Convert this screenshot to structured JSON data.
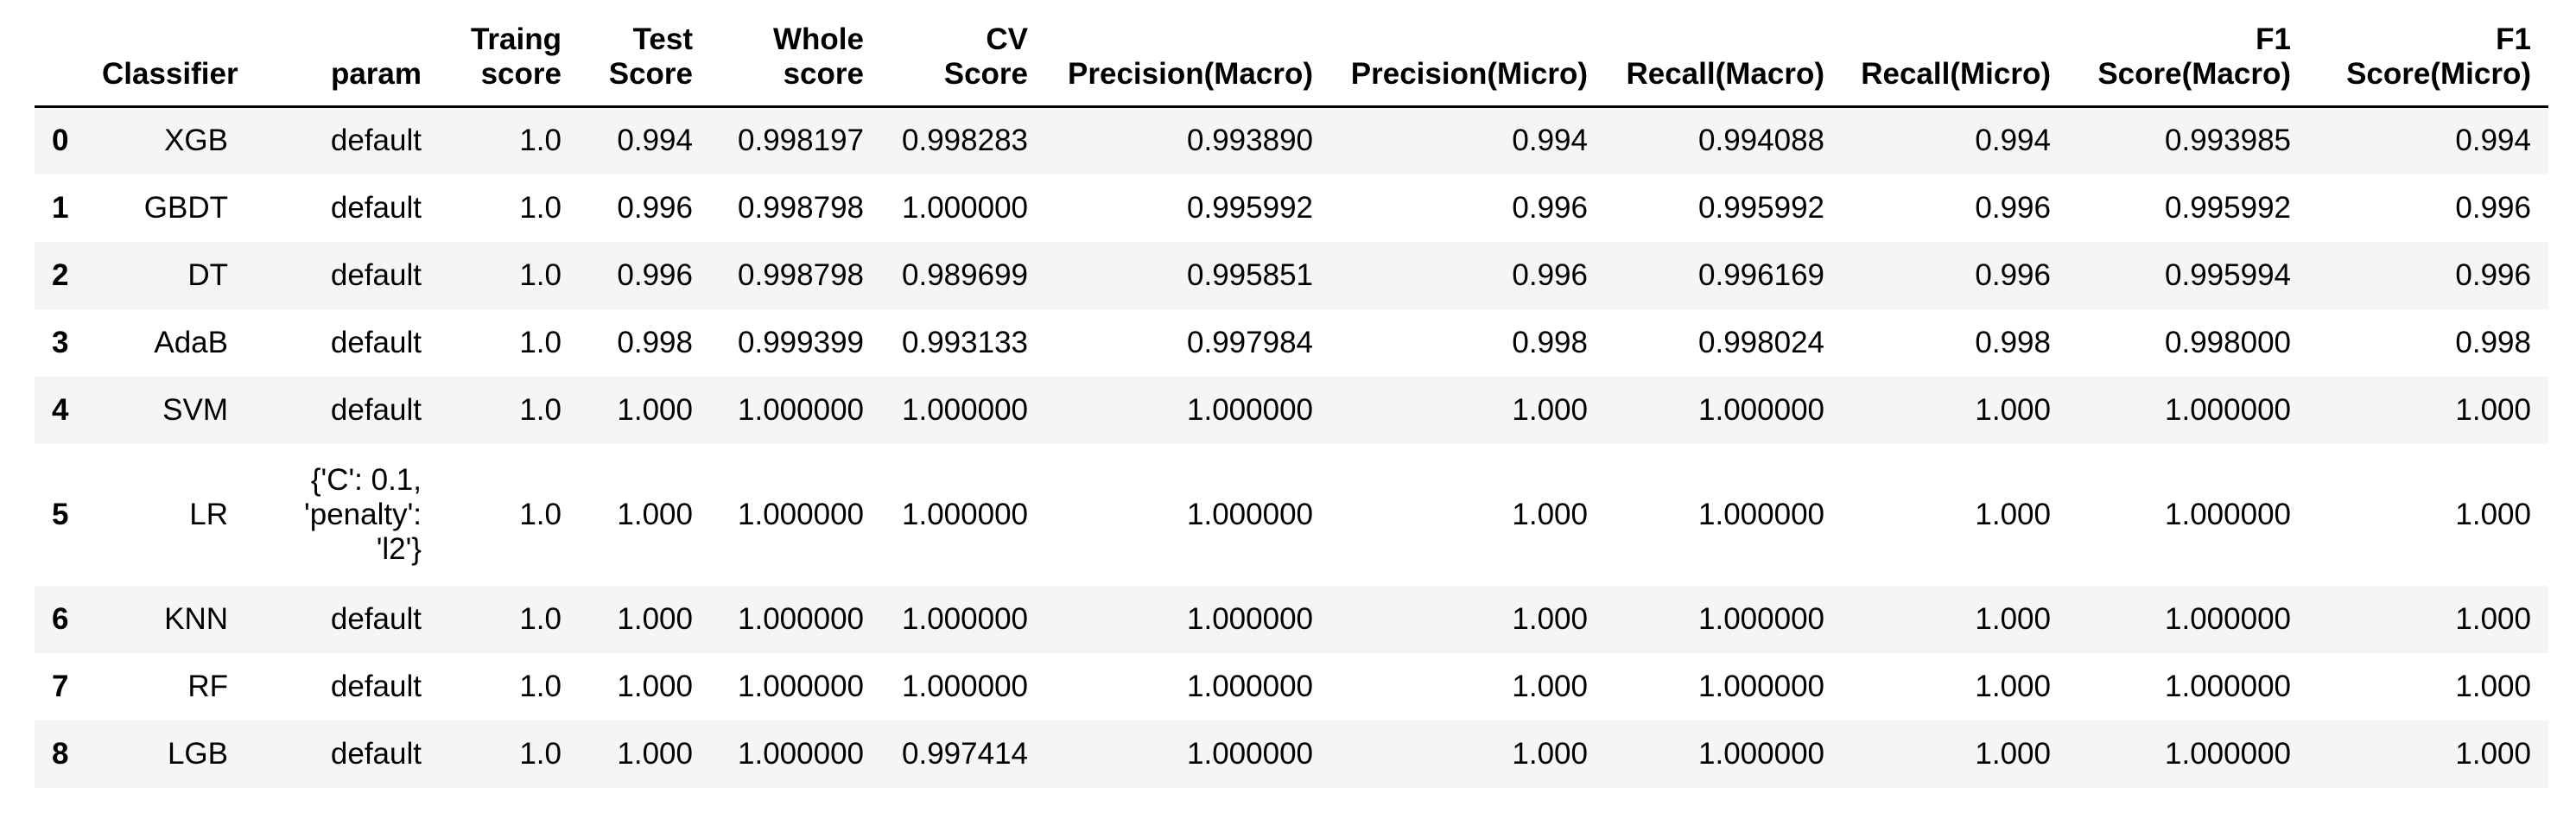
{
  "table": {
    "index_header": "",
    "columns": [
      "Classifier",
      "param",
      "Traing\nscore",
      "Test\nScore",
      "Whole\nscore",
      "CV\nScore",
      "Precision(Macro)",
      "Precision(Micro)",
      "Recall(Macro)",
      "Recall(Micro)",
      "F1\nScore(Macro)",
      "F1\nScore(Micro)"
    ],
    "rows": [
      {
        "index": "0",
        "cells": [
          "XGB",
          "default",
          "1.0",
          "0.994",
          "0.998197",
          "0.998283",
          "0.993890",
          "0.994",
          "0.994088",
          "0.994",
          "0.993985",
          "0.994"
        ]
      },
      {
        "index": "1",
        "cells": [
          "GBDT",
          "default",
          "1.0",
          "0.996",
          "0.998798",
          "1.000000",
          "0.995992",
          "0.996",
          "0.995992",
          "0.996",
          "0.995992",
          "0.996"
        ]
      },
      {
        "index": "2",
        "cells": [
          "DT",
          "default",
          "1.0",
          "0.996",
          "0.998798",
          "0.989699",
          "0.995851",
          "0.996",
          "0.996169",
          "0.996",
          "0.995994",
          "0.996"
        ]
      },
      {
        "index": "3",
        "cells": [
          "AdaB",
          "default",
          "1.0",
          "0.998",
          "0.999399",
          "0.993133",
          "0.997984",
          "0.998",
          "0.998024",
          "0.998",
          "0.998000",
          "0.998"
        ]
      },
      {
        "index": "4",
        "cells": [
          "SVM",
          "default",
          "1.0",
          "1.000",
          "1.000000",
          "1.000000",
          "1.000000",
          "1.000",
          "1.000000",
          "1.000",
          "1.000000",
          "1.000"
        ]
      },
      {
        "index": "5",
        "cells": [
          "LR",
          "{'C': 0.1,\n'penalty':\n'l2'}",
          "1.0",
          "1.000",
          "1.000000",
          "1.000000",
          "1.000000",
          "1.000",
          "1.000000",
          "1.000",
          "1.000000",
          "1.000"
        ]
      },
      {
        "index": "6",
        "cells": [
          "KNN",
          "default",
          "1.0",
          "1.000",
          "1.000000",
          "1.000000",
          "1.000000",
          "1.000",
          "1.000000",
          "1.000",
          "1.000000",
          "1.000"
        ]
      },
      {
        "index": "7",
        "cells": [
          "RF",
          "default",
          "1.0",
          "1.000",
          "1.000000",
          "1.000000",
          "1.000000",
          "1.000",
          "1.000000",
          "1.000",
          "1.000000",
          "1.000"
        ]
      },
      {
        "index": "8",
        "cells": [
          "LGB",
          "default",
          "1.0",
          "1.000",
          "1.000000",
          "0.997414",
          "1.000000",
          "1.000",
          "1.000000",
          "1.000",
          "1.000000",
          "1.000"
        ]
      }
    ]
  }
}
